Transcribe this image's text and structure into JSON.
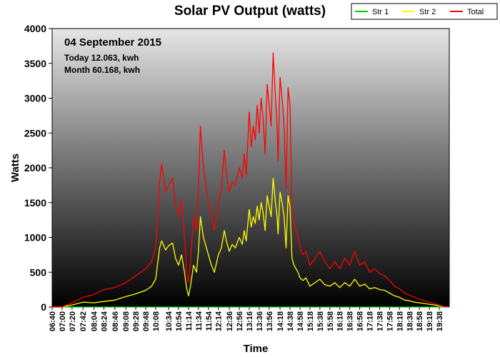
{
  "chart_data": {
    "type": "line",
    "title": "Solar PV Output (watts)",
    "xlabel": "Time",
    "ylabel": "Watts",
    "ylim": [
      0,
      4000
    ],
    "y_ticks": [
      0,
      500,
      1000,
      1500,
      2000,
      2500,
      3000,
      3500,
      4000
    ],
    "x_range": [
      "06:40",
      "19:58"
    ],
    "x_ticks": [
      "06:40",
      "07:00",
      "07:20",
      "07:42",
      "08:04",
      "08:24",
      "08:46",
      "09:08",
      "09:28",
      "09:48",
      "10:08",
      "10:34",
      "10:54",
      "11:14",
      "11:34",
      "11:54",
      "12:14",
      "12:36",
      "12:56",
      "13:16",
      "13:36",
      "13:56",
      "14:18",
      "14:38",
      "14:58",
      "15:18",
      "15:38",
      "15:58",
      "16:18",
      "16:38",
      "16:58",
      "17:18",
      "17:38",
      "17:58",
      "18:18",
      "18:38",
      "18:58",
      "19:18",
      "19:38"
    ],
    "grid": false,
    "legend_position": "top-right",
    "background": "vertical gradient, light gray top to black bottom",
    "annotations": {
      "date": "04 September 2015",
      "today": "Today 12.063, kwh",
      "month": "Month 60.168, kwh"
    },
    "series": [
      {
        "name": "Str 1",
        "color": "#00cc00",
        "x": [
          "06:40",
          "19:58"
        ],
        "values": [
          0,
          0
        ]
      },
      {
        "name": "Str 2",
        "color": "#ffff00",
        "x": [
          "06:40",
          "07:00",
          "07:20",
          "07:42",
          "08:04",
          "08:24",
          "08:46",
          "09:08",
          "09:28",
          "09:48",
          "10:00",
          "10:08",
          "10:16",
          "10:20",
          "10:28",
          "10:34",
          "10:42",
          "10:48",
          "10:54",
          "11:00",
          "11:06",
          "11:10",
          "11:14",
          "11:18",
          "11:24",
          "11:30",
          "11:34",
          "11:38",
          "11:44",
          "11:50",
          "11:54",
          "12:00",
          "12:06",
          "12:14",
          "12:20",
          "12:26",
          "12:30",
          "12:36",
          "12:42",
          "12:48",
          "12:56",
          "13:02",
          "13:06",
          "13:10",
          "13:16",
          "13:20",
          "13:24",
          "13:28",
          "13:32",
          "13:36",
          "13:40",
          "13:44",
          "13:48",
          "13:52",
          "13:56",
          "14:00",
          "14:04",
          "14:08",
          "14:12",
          "14:14",
          "14:18",
          "14:22",
          "14:26",
          "14:30",
          "14:34",
          "14:38",
          "14:42",
          "14:46",
          "14:50",
          "14:54",
          "14:58",
          "15:04",
          "15:10",
          "15:18",
          "15:28",
          "15:38",
          "15:48",
          "15:58",
          "16:08",
          "16:18",
          "16:28",
          "16:38",
          "16:48",
          "16:58",
          "17:08",
          "17:18",
          "17:28",
          "17:38",
          "17:48",
          "17:58",
          "18:08",
          "18:18",
          "18:28",
          "18:38",
          "18:48",
          "18:58",
          "19:08",
          "19:18",
          "19:28",
          "19:38",
          "19:48",
          "19:58"
        ],
        "values": [
          0,
          0,
          30,
          70,
          60,
          80,
          100,
          150,
          190,
          240,
          300,
          400,
          850,
          950,
          820,
          880,
          920,
          700,
          600,
          750,
          500,
          280,
          160,
          300,
          600,
          500,
          800,
          1300,
          1000,
          850,
          750,
          600,
          500,
          750,
          850,
          1100,
          950,
          800,
          900,
          850,
          1000,
          900,
          1100,
          950,
          1400,
          1150,
          1300,
          1200,
          1450,
          1250,
          1500,
          1350,
          1100,
          1600,
          1450,
          1300,
          1850,
          1550,
          1300,
          1050,
          1650,
          1500,
          1300,
          850,
          1600,
          1450,
          700,
          600,
          550,
          500,
          420,
          380,
          420,
          300,
          350,
          400,
          320,
          300,
          350,
          280,
          350,
          300,
          400,
          300,
          330,
          260,
          280,
          250,
          240,
          200,
          160,
          140,
          100,
          90,
          70,
          60,
          50,
          40,
          30,
          15,
          5,
          0
        ]
      },
      {
        "name": "Total",
        "color": "#ff0000",
        "x": [
          "06:40",
          "07:00",
          "07:20",
          "07:42",
          "08:04",
          "08:24",
          "08:46",
          "09:08",
          "09:28",
          "09:48",
          "10:00",
          "10:08",
          "10:16",
          "10:20",
          "10:28",
          "10:34",
          "10:42",
          "10:48",
          "10:54",
          "11:00",
          "11:06",
          "11:10",
          "11:14",
          "11:18",
          "11:24",
          "11:30",
          "11:34",
          "11:38",
          "11:44",
          "11:50",
          "11:54",
          "12:00",
          "12:06",
          "12:14",
          "12:20",
          "12:26",
          "12:30",
          "12:36",
          "12:42",
          "12:48",
          "12:56",
          "13:02",
          "13:06",
          "13:10",
          "13:16",
          "13:20",
          "13:24",
          "13:28",
          "13:32",
          "13:36",
          "13:40",
          "13:44",
          "13:48",
          "13:52",
          "13:56",
          "14:00",
          "14:04",
          "14:08",
          "14:12",
          "14:14",
          "14:18",
          "14:22",
          "14:26",
          "14:30",
          "14:34",
          "14:38",
          "14:42",
          "14:46",
          "14:50",
          "14:54",
          "14:58",
          "15:04",
          "15:10",
          "15:18",
          "15:28",
          "15:38",
          "15:48",
          "15:58",
          "16:08",
          "16:18",
          "16:28",
          "16:38",
          "16:48",
          "16:58",
          "17:08",
          "17:18",
          "17:28",
          "17:38",
          "17:48",
          "17:58",
          "18:08",
          "18:18",
          "18:28",
          "18:38",
          "18:48",
          "18:58",
          "19:08",
          "19:18",
          "19:28",
          "19:38",
          "19:48",
          "19:58"
        ],
        "values": [
          0,
          0,
          60,
          140,
          180,
          250,
          280,
          350,
          450,
          550,
          650,
          850,
          1800,
          2050,
          1650,
          1750,
          1850,
          1450,
          1300,
          1550,
          1000,
          550,
          350,
          650,
          1300,
          1100,
          1650,
          2600,
          2000,
          1700,
          1500,
          1300,
          1100,
          1500,
          1700,
          2250,
          1900,
          1650,
          1800,
          1750,
          2000,
          1850,
          2200,
          1900,
          2800,
          2300,
          2600,
          2400,
          2900,
          2500,
          3000,
          2700,
          2200,
          3200,
          2900,
          2600,
          3650,
          3100,
          2600,
          2100,
          3300,
          3000,
          2600,
          1700,
          3150,
          2900,
          1400,
          1200,
          1100,
          1000,
          850,
          750,
          800,
          600,
          700,
          800,
          650,
          550,
          650,
          550,
          700,
          600,
          800,
          600,
          650,
          500,
          550,
          480,
          450,
          380,
          300,
          260,
          200,
          170,
          140,
          110,
          90,
          70,
          50,
          25,
          5,
          0
        ]
      }
    ]
  }
}
